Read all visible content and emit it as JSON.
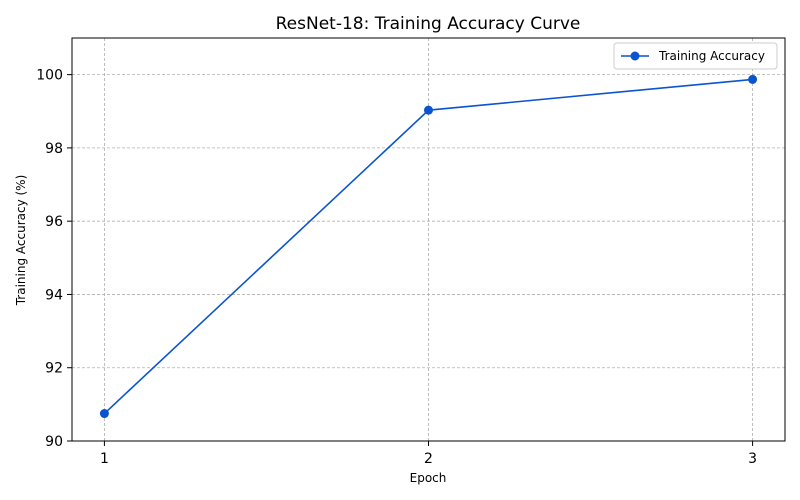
{
  "chart_data": {
    "type": "line",
    "title": "ResNet-18: Training Accuracy Curve",
    "xlabel": "Epoch",
    "ylabel": "Training Accuracy (%)",
    "x": [
      1,
      2,
      3
    ],
    "xlim": [
      0.9,
      3.1
    ],
    "ylim": [
      90,
      101
    ],
    "xticks": [
      1,
      2,
      3
    ],
    "yticks": [
      90,
      92,
      94,
      96,
      98,
      100
    ],
    "grid": true,
    "legend_position": "top-right",
    "series": [
      {
        "name": "Training Accuracy",
        "color": "#0b54cf",
        "marker": "circle",
        "values": [
          90.75,
          99.03,
          99.87
        ]
      }
    ]
  }
}
